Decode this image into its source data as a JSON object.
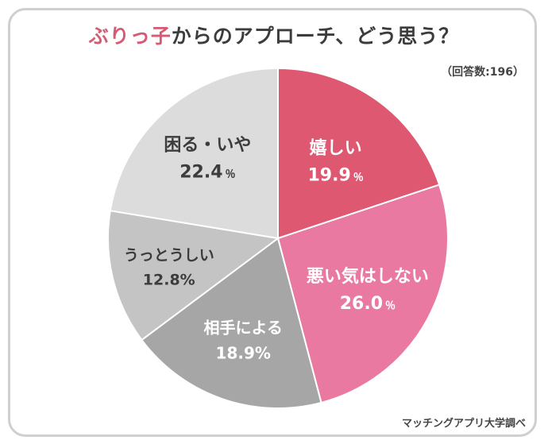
{
  "title": {
    "highlight": "ぶりっ子",
    "rest": "からのアプローチ、どう思う？"
  },
  "respondents": "（回答数:196）",
  "source": "マッチングアプリ大学調べ",
  "chart_data": {
    "type": "pie",
    "title": "ぶりっ子からのアプローチ、どう思う？",
    "start": "12 o'clock",
    "direction": "clockwise",
    "slices": [
      {
        "label": "嬉しい",
        "value": 19.9,
        "display_value": "19.9",
        "unit": "％",
        "color": "#dd5870",
        "text_color": "#ffffff",
        "font_size": 22
      },
      {
        "label": "悪い気はしない",
        "value": 26.0,
        "display_value": "26.0",
        "unit": "％",
        "color": "#e979a0",
        "text_color": "#ffffff",
        "font_size": 22
      },
      {
        "label": "相手による",
        "value": 18.9,
        "display_value": "18.9%",
        "unit": "",
        "color": "#a6a6a6",
        "text_color": "#ffffff",
        "font_size": 20
      },
      {
        "label": "うっとうしい",
        "value": 12.8,
        "display_value": "12.8%",
        "unit": "",
        "color": "#c4c4c4",
        "text_color": "#3c3c3c",
        "font_size": 19
      },
      {
        "label": "困る・いや",
        "value": 22.4,
        "display_value": "22.4",
        "unit": "％",
        "color": "#dcdcdc",
        "text_color": "#3c3c3c",
        "font_size": 22
      }
    ]
  }
}
